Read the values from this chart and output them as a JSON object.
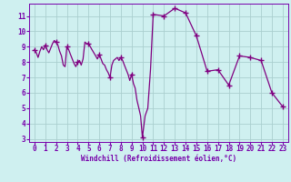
{
  "xlabel": "Windchill (Refroidissement éolien,°C)",
  "bg_color": "#cff0f0",
  "line_color": "#800080",
  "marker_color": "#800080",
  "grid_color": "#aacfcf",
  "tick_color": "#7700aa",
  "xlabel_color": "#7700aa",
  "ylim": [
    2.8,
    11.8
  ],
  "xlim": [
    -0.5,
    23.5
  ],
  "yticks": [
    3,
    4,
    5,
    6,
    7,
    8,
    9,
    10,
    11
  ],
  "xticks": [
    0,
    1,
    2,
    3,
    4,
    5,
    6,
    7,
    8,
    9,
    10,
    11,
    12,
    13,
    14,
    15,
    16,
    17,
    18,
    19,
    20,
    21,
    22,
    23
  ],
  "x": [
    0,
    0.17,
    0.33,
    0.5,
    0.67,
    0.83,
    1.0,
    1.17,
    1.33,
    1.5,
    1.67,
    1.83,
    2.0,
    2.17,
    2.33,
    2.5,
    2.67,
    2.83,
    3.0,
    3.17,
    3.33,
    3.5,
    3.67,
    3.83,
    4.0,
    4.17,
    4.33,
    4.5,
    4.67,
    4.83,
    5.0,
    5.17,
    5.33,
    5.5,
    5.67,
    5.83,
    6.0,
    6.17,
    6.33,
    6.5,
    6.67,
    6.83,
    7.0,
    7.17,
    7.33,
    7.5,
    7.67,
    7.83,
    8.0,
    8.17,
    8.33,
    8.5,
    8.67,
    8.83,
    9.0,
    9.17,
    9.33,
    9.5,
    9.67,
    9.83,
    10.0,
    10.25,
    10.5,
    10.75,
    11.0,
    12.0,
    13.0,
    14.0,
    15.0,
    16.0,
    17.0,
    18.0,
    19.0,
    20.0,
    21.0,
    22.0,
    23.0
  ],
  "y": [
    8.8,
    8.6,
    8.3,
    8.7,
    9.0,
    8.8,
    9.1,
    8.8,
    8.6,
    8.9,
    9.2,
    9.4,
    9.3,
    9.1,
    8.7,
    8.4,
    7.8,
    7.7,
    9.0,
    8.8,
    8.5,
    8.2,
    7.9,
    7.7,
    8.0,
    8.1,
    7.8,
    8.2,
    9.3,
    9.2,
    9.2,
    9.0,
    8.8,
    8.6,
    8.4,
    8.2,
    8.5,
    8.2,
    7.9,
    7.8,
    7.5,
    7.3,
    7.0,
    7.8,
    8.1,
    8.2,
    8.3,
    8.1,
    8.3,
    8.1,
    7.8,
    7.5,
    7.2,
    6.8,
    7.2,
    6.6,
    6.3,
    5.5,
    5.0,
    4.5,
    3.1,
    4.5,
    5.0,
    7.5,
    11.1,
    11.0,
    11.5,
    11.2,
    9.7,
    7.4,
    7.5,
    6.5,
    8.4,
    8.3,
    8.1,
    6.0,
    5.1
  ],
  "marker_x": [
    0,
    1,
    2,
    3,
    4,
    5,
    6,
    7,
    8,
    9,
    10,
    11,
    12,
    13,
    14,
    15,
    16,
    17,
    18,
    19,
    20,
    21,
    22,
    23
  ],
  "marker_y": [
    8.8,
    9.1,
    9.3,
    9.0,
    8.0,
    9.2,
    8.5,
    7.0,
    8.3,
    7.2,
    3.1,
    11.1,
    11.0,
    11.5,
    11.2,
    9.7,
    7.4,
    7.5,
    6.5,
    8.4,
    8.3,
    8.1,
    6.0,
    5.1
  ]
}
